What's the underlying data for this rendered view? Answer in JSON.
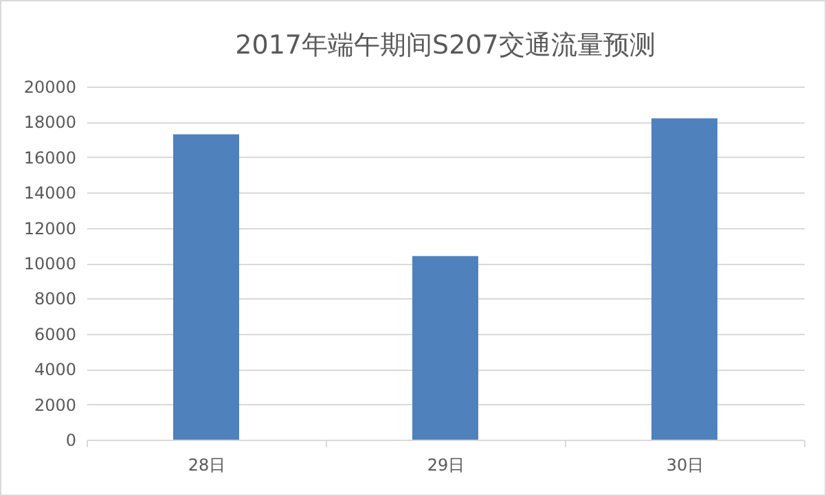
{
  "chart_data": {
    "type": "bar",
    "title": "2017年端午期间S207交通流量预测",
    "categories": [
      "28日",
      "29日",
      "30日"
    ],
    "values": [
      17300,
      10400,
      18200
    ],
    "color": "#4f81bd",
    "ylim": [
      0,
      20000
    ],
    "yticks": [
      0,
      2000,
      4000,
      6000,
      8000,
      10000,
      12000,
      14000,
      16000,
      18000,
      20000
    ],
    "grid": "y"
  }
}
